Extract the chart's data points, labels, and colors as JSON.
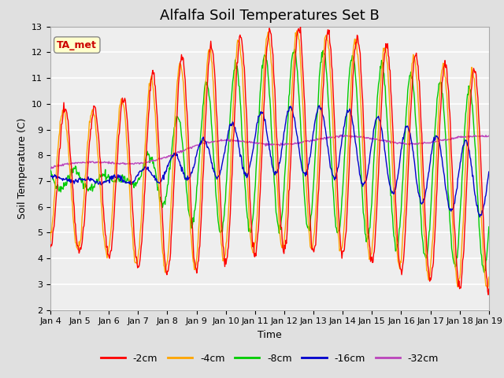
{
  "title": "Alfalfa Soil Temperatures Set B",
  "xlabel": "Time",
  "ylabel": "Soil Temperature (C)",
  "ylim": [
    2.0,
    13.0
  ],
  "yticks": [
    2.0,
    3.0,
    4.0,
    5.0,
    6.0,
    7.0,
    8.0,
    9.0,
    10.0,
    11.0,
    12.0,
    13.0
  ],
  "xtick_labels": [
    "Jan 4",
    "Jan 5",
    "Jan 6",
    "Jan 7",
    "Jan 8",
    "Jan 9",
    "Jan 10",
    "Jan 11",
    "Jan 12",
    "Jan 13",
    "Jan 14",
    "Jan 15",
    "Jan 16",
    "Jan 17",
    "Jan 18",
    "Jan 19"
  ],
  "colors": {
    "-2cm": "#ff0000",
    "-4cm": "#ffa500",
    "-8cm": "#00cc00",
    "-16cm": "#0000cc",
    "-32cm": "#bb44bb"
  },
  "annotation_text": "TA_met",
  "annotation_color": "#cc0000",
  "annotation_bg": "#ffffcc",
  "annotation_edge": "#888888",
  "fig_bg": "#e0e0e0",
  "ax_bg": "#eeeeee",
  "grid_color": "#ffffff",
  "title_fontsize": 13,
  "label_fontsize": 9,
  "tick_fontsize": 8,
  "legend_fontsize": 9,
  "line_width": 1.0,
  "n_days": 15,
  "n_points": 720
}
